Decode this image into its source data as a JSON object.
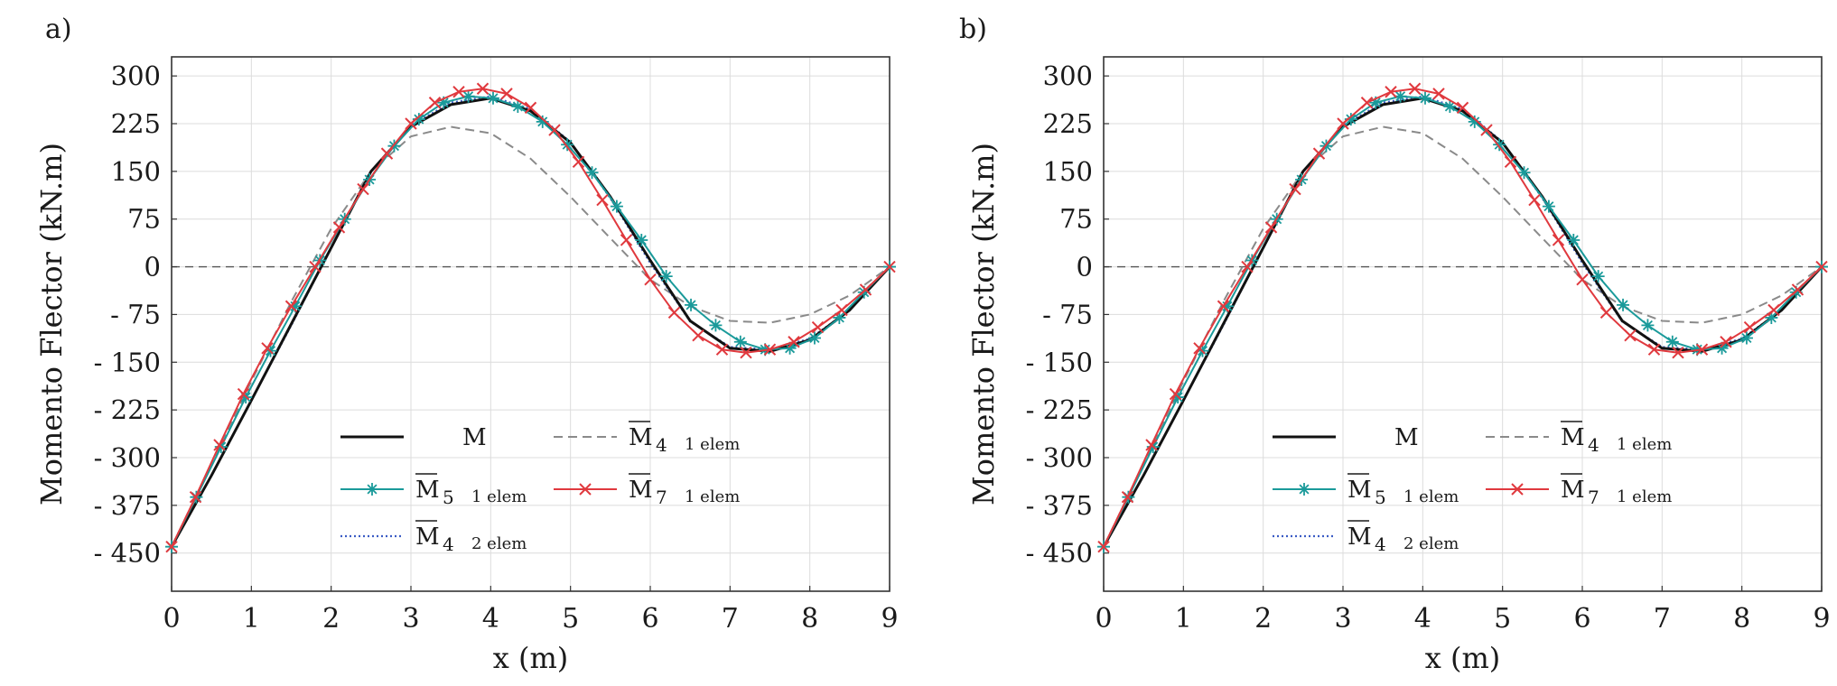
{
  "chart_data": [
    {
      "panel_label": "a)",
      "type": "line",
      "xlabel": "x (m)",
      "ylabel": "Momento Flector (kN.m)",
      "xlim": [
        0,
        9
      ],
      "ylim": [
        -510,
        330
      ],
      "xticks": [
        0,
        1,
        2,
        3,
        4,
        5,
        6,
        7,
        8,
        9
      ],
      "yticks": [
        300,
        225,
        150,
        75,
        0,
        -75,
        -150,
        -225,
        -300,
        -375,
        -450
      ],
      "ytick_labels": [
        "300",
        "225",
        "150",
        "75",
        "0",
        "- 75",
        "- 150",
        "- 225",
        "- 300",
        "- 375",
        "- 450"
      ],
      "grid": true,
      "zero_line": true,
      "legend_placement": "lower-center",
      "series": [
        {
          "name": "M",
          "style": "solid",
          "color": "#111111",
          "x": [
            0,
            0.5,
            1,
            1.5,
            2,
            2.5,
            3,
            3.5,
            4,
            4.5,
            5,
            5.5,
            6,
            6.5,
            7,
            7.5,
            8,
            8.5,
            9
          ],
          "y": [
            -440,
            -328,
            -210,
            -90,
            30,
            150,
            220,
            255,
            265,
            245,
            195,
            110,
            10,
            -85,
            -128,
            -133,
            -115,
            -68,
            0
          ]
        },
        {
          "name": "M̄4  1 elem",
          "style": "dashed",
          "color": "#8a8a8a",
          "x": [
            0,
            0.5,
            1,
            1.5,
            2,
            2.5,
            3,
            3.5,
            4,
            4.5,
            5,
            5.5,
            6,
            6.5,
            7,
            7.5,
            8,
            8.5,
            9
          ],
          "y": [
            -440,
            -310,
            -180,
            -55,
            60,
            150,
            205,
            220,
            210,
            170,
            110,
            45,
            -20,
            -62,
            -85,
            -88,
            -75,
            -45,
            0
          ]
        },
        {
          "name": "M̄5  1 elem",
          "style": "solid-star",
          "color": "#1a9a9a",
          "x": [
            0,
            0.31,
            0.62,
            0.93,
            1.24,
            1.55,
            1.86,
            2.17,
            2.48,
            2.79,
            3.1,
            3.41,
            3.72,
            4.03,
            4.34,
            4.65,
            4.96,
            5.27,
            5.58,
            5.89,
            6.2,
            6.51,
            6.82,
            7.13,
            7.44,
            7.75,
            8.06,
            8.37,
            8.68,
            9
          ],
          "y": [
            -440,
            -362,
            -283,
            -205,
            -132,
            -62,
            10,
            75,
            137,
            190,
            232,
            258,
            268,
            265,
            252,
            228,
            192,
            148,
            95,
            42,
            -15,
            -60,
            -92,
            -118,
            -130,
            -128,
            -112,
            -80,
            -40,
            0
          ]
        },
        {
          "name": "M̄7  1 elem",
          "style": "solid-x",
          "color": "#e0393e",
          "x": [
            0,
            0.3,
            0.6,
            0.9,
            1.2,
            1.5,
            1.8,
            2.1,
            2.4,
            2.7,
            3.0,
            3.3,
            3.6,
            3.9,
            4.2,
            4.5,
            4.8,
            5.1,
            5.4,
            5.7,
            6.0,
            6.3,
            6.6,
            6.9,
            7.2,
            7.5,
            7.8,
            8.1,
            8.4,
            8.7,
            9
          ],
          "y": [
            -440,
            -362,
            -280,
            -200,
            -128,
            -62,
            0,
            62,
            122,
            178,
            225,
            258,
            275,
            280,
            272,
            250,
            215,
            165,
            105,
            42,
            -20,
            -72,
            -108,
            -130,
            -135,
            -130,
            -118,
            -95,
            -68,
            -36,
            0
          ]
        },
        {
          "name": "M̄4  2 elem",
          "style": "dotted",
          "color": "#3b5cc4",
          "x": [
            0,
            0.5,
            1,
            1.5,
            2,
            2.5,
            3,
            3.5,
            4,
            4.5,
            5,
            5.5,
            6,
            6.5,
            7,
            7.5,
            8,
            8.5,
            9
          ],
          "y": [
            -440,
            -328,
            -210,
            -92,
            30,
            150,
            222,
            258,
            268,
            248,
            196,
            108,
            6,
            -86,
            -126,
            -130,
            -113,
            -68,
            0
          ]
        }
      ]
    },
    {
      "panel_label": "b)",
      "type": "line",
      "xlabel": "x (m)",
      "ylabel": "Momento Flector (kN.m)",
      "xlim": [
        0,
        9
      ],
      "ylim": [
        -510,
        330
      ],
      "xticks": [
        0,
        1,
        2,
        3,
        4,
        5,
        6,
        7,
        8,
        9
      ],
      "yticks": [
        300,
        225,
        150,
        75,
        0,
        -75,
        -150,
        -225,
        -300,
        -375,
        -450
      ],
      "ytick_labels": [
        "300",
        "225",
        "150",
        "75",
        "0",
        "- 75",
        "- 150",
        "- 225",
        "- 300",
        "- 375",
        "- 450"
      ],
      "grid": true,
      "zero_line": true,
      "legend_placement": "lower-center",
      "series": [
        {
          "name": "M",
          "style": "solid",
          "color": "#111111",
          "x": [
            0,
            0.5,
            1,
            1.5,
            2,
            2.5,
            3,
            3.5,
            4,
            4.5,
            5,
            5.5,
            6,
            6.5,
            7,
            7.5,
            8,
            8.5,
            9
          ],
          "y": [
            -440,
            -328,
            -210,
            -90,
            30,
            150,
            220,
            255,
            265,
            245,
            195,
            110,
            10,
            -85,
            -128,
            -133,
            -115,
            -68,
            0
          ]
        },
        {
          "name": "M̄4  1 elem",
          "style": "dashed",
          "color": "#8a8a8a",
          "x": [
            0,
            0.5,
            1,
            1.5,
            2,
            2.5,
            3,
            3.5,
            4,
            4.5,
            5,
            5.5,
            6,
            6.5,
            7,
            7.5,
            8,
            8.5,
            9
          ],
          "y": [
            -440,
            -310,
            -180,
            -55,
            60,
            150,
            205,
            220,
            210,
            170,
            110,
            45,
            -20,
            -62,
            -85,
            -88,
            -75,
            -45,
            0
          ]
        },
        {
          "name": "M̄5  1 elem",
          "style": "solid-star",
          "color": "#1a9a9a",
          "x": [
            0,
            0.31,
            0.62,
            0.93,
            1.24,
            1.55,
            1.86,
            2.17,
            2.48,
            2.79,
            3.1,
            3.41,
            3.72,
            4.03,
            4.34,
            4.65,
            4.96,
            5.27,
            5.58,
            5.89,
            6.2,
            6.51,
            6.82,
            7.13,
            7.44,
            7.75,
            8.06,
            8.37,
            8.68,
            9
          ],
          "y": [
            -440,
            -362,
            -283,
            -205,
            -132,
            -62,
            10,
            75,
            137,
            190,
            232,
            258,
            268,
            265,
            252,
            228,
            192,
            148,
            95,
            42,
            -15,
            -60,
            -92,
            -118,
            -130,
            -128,
            -112,
            -80,
            -40,
            0
          ]
        },
        {
          "name": "M̄7  1 elem",
          "style": "solid-x",
          "color": "#e0393e",
          "x": [
            0,
            0.3,
            0.6,
            0.9,
            1.2,
            1.5,
            1.8,
            2.1,
            2.4,
            2.7,
            3.0,
            3.3,
            3.6,
            3.9,
            4.2,
            4.5,
            4.8,
            5.1,
            5.4,
            5.7,
            6.0,
            6.3,
            6.6,
            6.9,
            7.2,
            7.5,
            7.8,
            8.1,
            8.4,
            8.7,
            9
          ],
          "y": [
            -440,
            -362,
            -280,
            -200,
            -128,
            -62,
            0,
            62,
            122,
            178,
            225,
            258,
            275,
            280,
            272,
            250,
            215,
            165,
            105,
            42,
            -20,
            -72,
            -108,
            -130,
            -135,
            -130,
            -118,
            -95,
            -68,
            -36,
            0
          ]
        },
        {
          "name": "M̄4  2 elem",
          "style": "dotted",
          "color": "#3b5cc4",
          "x": [
            0,
            0.5,
            1,
            1.5,
            2,
            2.5,
            3,
            3.5,
            4,
            4.5,
            5,
            5.5,
            6,
            6.5,
            7,
            7.5,
            8,
            8.5,
            9
          ],
          "y": [
            -440,
            -328,
            -210,
            -92,
            30,
            150,
            222,
            258,
            268,
            248,
            196,
            108,
            6,
            -86,
            -126,
            -130,
            -113,
            -68,
            0
          ]
        }
      ]
    }
  ]
}
